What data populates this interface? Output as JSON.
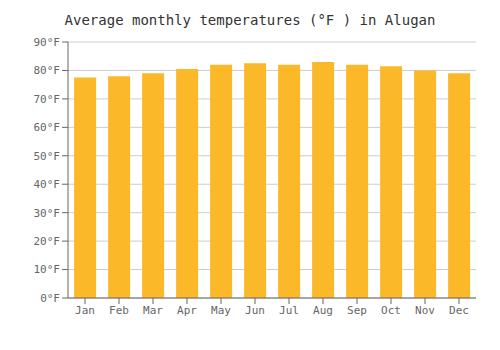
{
  "chart_data": {
    "type": "bar",
    "title": "Average monthly temperatures (°F ) in Alugan",
    "categories": [
      "Jan",
      "Feb",
      "Mar",
      "Apr",
      "May",
      "Jun",
      "Jul",
      "Aug",
      "Sep",
      "Oct",
      "Nov",
      "Dec"
    ],
    "values": [
      77.5,
      78.0,
      79.0,
      80.5,
      82.0,
      82.5,
      82.0,
      83.0,
      82.0,
      81.5,
      80.0,
      79.0
    ],
    "color": "#FBB829",
    "ylim": [
      0,
      90
    ],
    "yticks": [
      {
        "value": 0,
        "label": "0°F"
      },
      {
        "value": 10,
        "label": "10°F"
      },
      {
        "value": 20,
        "label": "20°F"
      },
      {
        "value": 30,
        "label": "30°F"
      },
      {
        "value": 40,
        "label": "40°F"
      },
      {
        "value": 50,
        "label": "50°F"
      },
      {
        "value": 60,
        "label": "60°F"
      },
      {
        "value": 70,
        "label": "70°F"
      },
      {
        "value": 80,
        "label": "80°F"
      },
      {
        "value": 90,
        "label": "90°F"
      }
    ],
    "grid": true
  }
}
